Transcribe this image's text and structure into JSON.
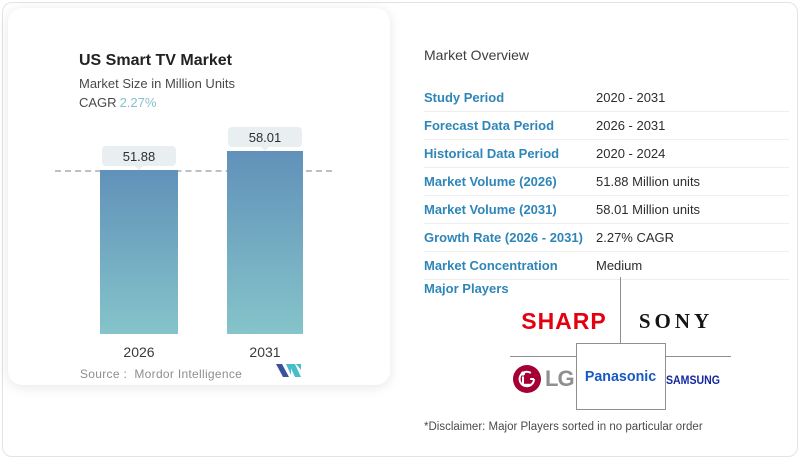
{
  "chart_card": {
    "title": "US Smart TV Market",
    "subtitle": "Market Size in Million Units",
    "cagr_label": "CAGR",
    "cagr_value": "2.27%",
    "source_label": "Source :",
    "source_value": "Mordor Intelligence"
  },
  "chart_data": {
    "type": "bar",
    "title": "US Smart TV Market",
    "subtitle": "Market Size in Million Units",
    "cagr": "2.27%",
    "categories": [
      "2026",
      "2031"
    ],
    "values": [
      51.88,
      58.01
    ],
    "data_labels": [
      "51.88",
      "58.01"
    ],
    "unit": "Million Units",
    "ylim": [
      0,
      60
    ],
    "grid": false,
    "reference_line": {
      "style": "dashed",
      "at_value": 51.88
    },
    "bar_gradient_top": "#6191b9",
    "bar_gradient_bottom": "#85c4ca"
  },
  "overview": {
    "heading": "Market Overview",
    "rows": [
      {
        "label": "Study Period",
        "value": "2020 - 2031"
      },
      {
        "label": "Forecast Data Period",
        "value": "2026 - 2031"
      },
      {
        "label": "Historical Data Period",
        "value": "2020 - 2024"
      },
      {
        "label": "Market Volume (2026)",
        "value": "51.88 Million units"
      },
      {
        "label": "Market Volume (2031)",
        "value": "58.01 Million units"
      },
      {
        "label": "Growth Rate (2026 - 2031)",
        "value": "2.27% CAGR"
      },
      {
        "label": "Market Concentration",
        "value": "Medium"
      }
    ],
    "major_players_label": "Major Players",
    "major_players": [
      "SHARP",
      "SONY",
      "LG",
      "Panasonic",
      "SAMSUNG"
    ],
    "disclaimer": "*Disclaimer: Major Players sorted in no particular order"
  },
  "colors": {
    "table_label_blue": "#2e86b8",
    "cagr_teal": "#85c2cd",
    "sharp_red": "#e3000f",
    "sony_black": "#141414",
    "lg_magenta": "#a50034",
    "lg_gray": "#8f8f8f",
    "panasonic_blue": "#1759c4",
    "samsung_blue": "#1428a0"
  }
}
